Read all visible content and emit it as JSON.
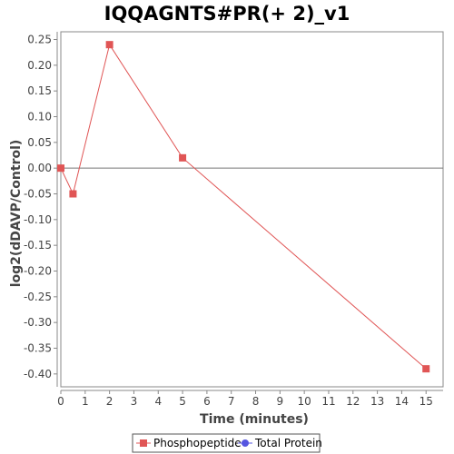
{
  "chart_data": {
    "type": "line",
    "title": "IQQAGNTS#PR(+ 2)_v1",
    "xlabel": "Time (minutes)",
    "ylabel": "log2(dDAVP/Control)",
    "xlim": [
      0,
      15.7
    ],
    "ylim": [
      -0.425,
      0.265
    ],
    "xticks": [
      0,
      1,
      2,
      3,
      4,
      5,
      6,
      7,
      8,
      9,
      10,
      11,
      12,
      13,
      14,
      15
    ],
    "yticks": [
      0.25,
      0.2,
      0.15,
      0.1,
      0.05,
      0.0,
      -0.05,
      -0.1,
      -0.15,
      -0.2,
      -0.25,
      -0.3,
      -0.35,
      -0.4
    ],
    "ytick_labels": [
      "0.25",
      "0.20",
      "0.15",
      "0.10",
      "0.05",
      "0.00",
      "-0.05",
      "-0.10",
      "-0.15",
      "-0.20",
      "-0.25",
      "-0.30",
      "-0.35",
      "-0.40"
    ],
    "grid": false,
    "zero_line": true,
    "legend_position": "bottom",
    "series": [
      {
        "name": "Phosphopeptide",
        "color": "#e05555",
        "marker": "square",
        "x": [
          0,
          0.5,
          2,
          5,
          15
        ],
        "y": [
          0.0,
          -0.05,
          0.24,
          0.02,
          -0.39
        ]
      },
      {
        "name": "Total Protein",
        "color": "#5555e0",
        "marker": "circle",
        "x": [],
        "y": []
      }
    ]
  }
}
